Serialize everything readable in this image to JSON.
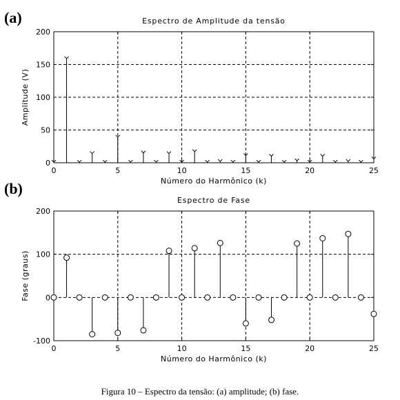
{
  "caption": "Figura 10 – Espectro da tensão: (a) amplitude; (b) fase.",
  "chart_data": [
    {
      "panel_label": "(a)",
      "type": "stem",
      "marker": "x",
      "title": "Espectro de Amplitude da tensão",
      "xlabel": "Número do Harmônico (k)",
      "ylabel": "Amplitude (V)",
      "xlim": [
        0,
        25
      ],
      "ylim": [
        0,
        200
      ],
      "xticks": [
        0,
        5,
        10,
        15,
        20,
        25
      ],
      "yticks": [
        0,
        50,
        100,
        150,
        200
      ],
      "grid": true,
      "x": [
        0,
        1,
        2,
        3,
        4,
        5,
        6,
        7,
        8,
        9,
        10,
        11,
        12,
        13,
        14,
        15,
        16,
        17,
        18,
        19,
        20,
        21,
        22,
        23,
        24,
        25
      ],
      "values": [
        1,
        159,
        1,
        14,
        1,
        39,
        1,
        15,
        1,
        14,
        1,
        17,
        1,
        2,
        1,
        11,
        1,
        10,
        1,
        3,
        1,
        10,
        1,
        2,
        1,
        6
      ]
    },
    {
      "panel_label": "(b)",
      "type": "stem",
      "marker": "o",
      "title": "Espectro de Fase",
      "xlabel": "Número do Harmônico (k)",
      "ylabel": "Fase (graus)",
      "xlim": [
        0,
        25
      ],
      "ylim": [
        -100,
        200
      ],
      "xticks": [
        0,
        5,
        10,
        15,
        20,
        25
      ],
      "yticks": [
        -100,
        0,
        100,
        200
      ],
      "grid": true,
      "x": [
        0,
        1,
        2,
        3,
        4,
        5,
        6,
        7,
        8,
        9,
        10,
        11,
        12,
        13,
        14,
        15,
        16,
        17,
        18,
        19,
        20,
        21,
        22,
        23,
        24,
        25
      ],
      "values": [
        0,
        92,
        0,
        -85,
        0,
        -82,
        0,
        -76,
        0,
        108,
        0,
        114,
        0,
        126,
        0,
        -60,
        0,
        -52,
        0,
        125,
        0,
        137,
        0,
        147,
        0,
        -38
      ]
    }
  ]
}
